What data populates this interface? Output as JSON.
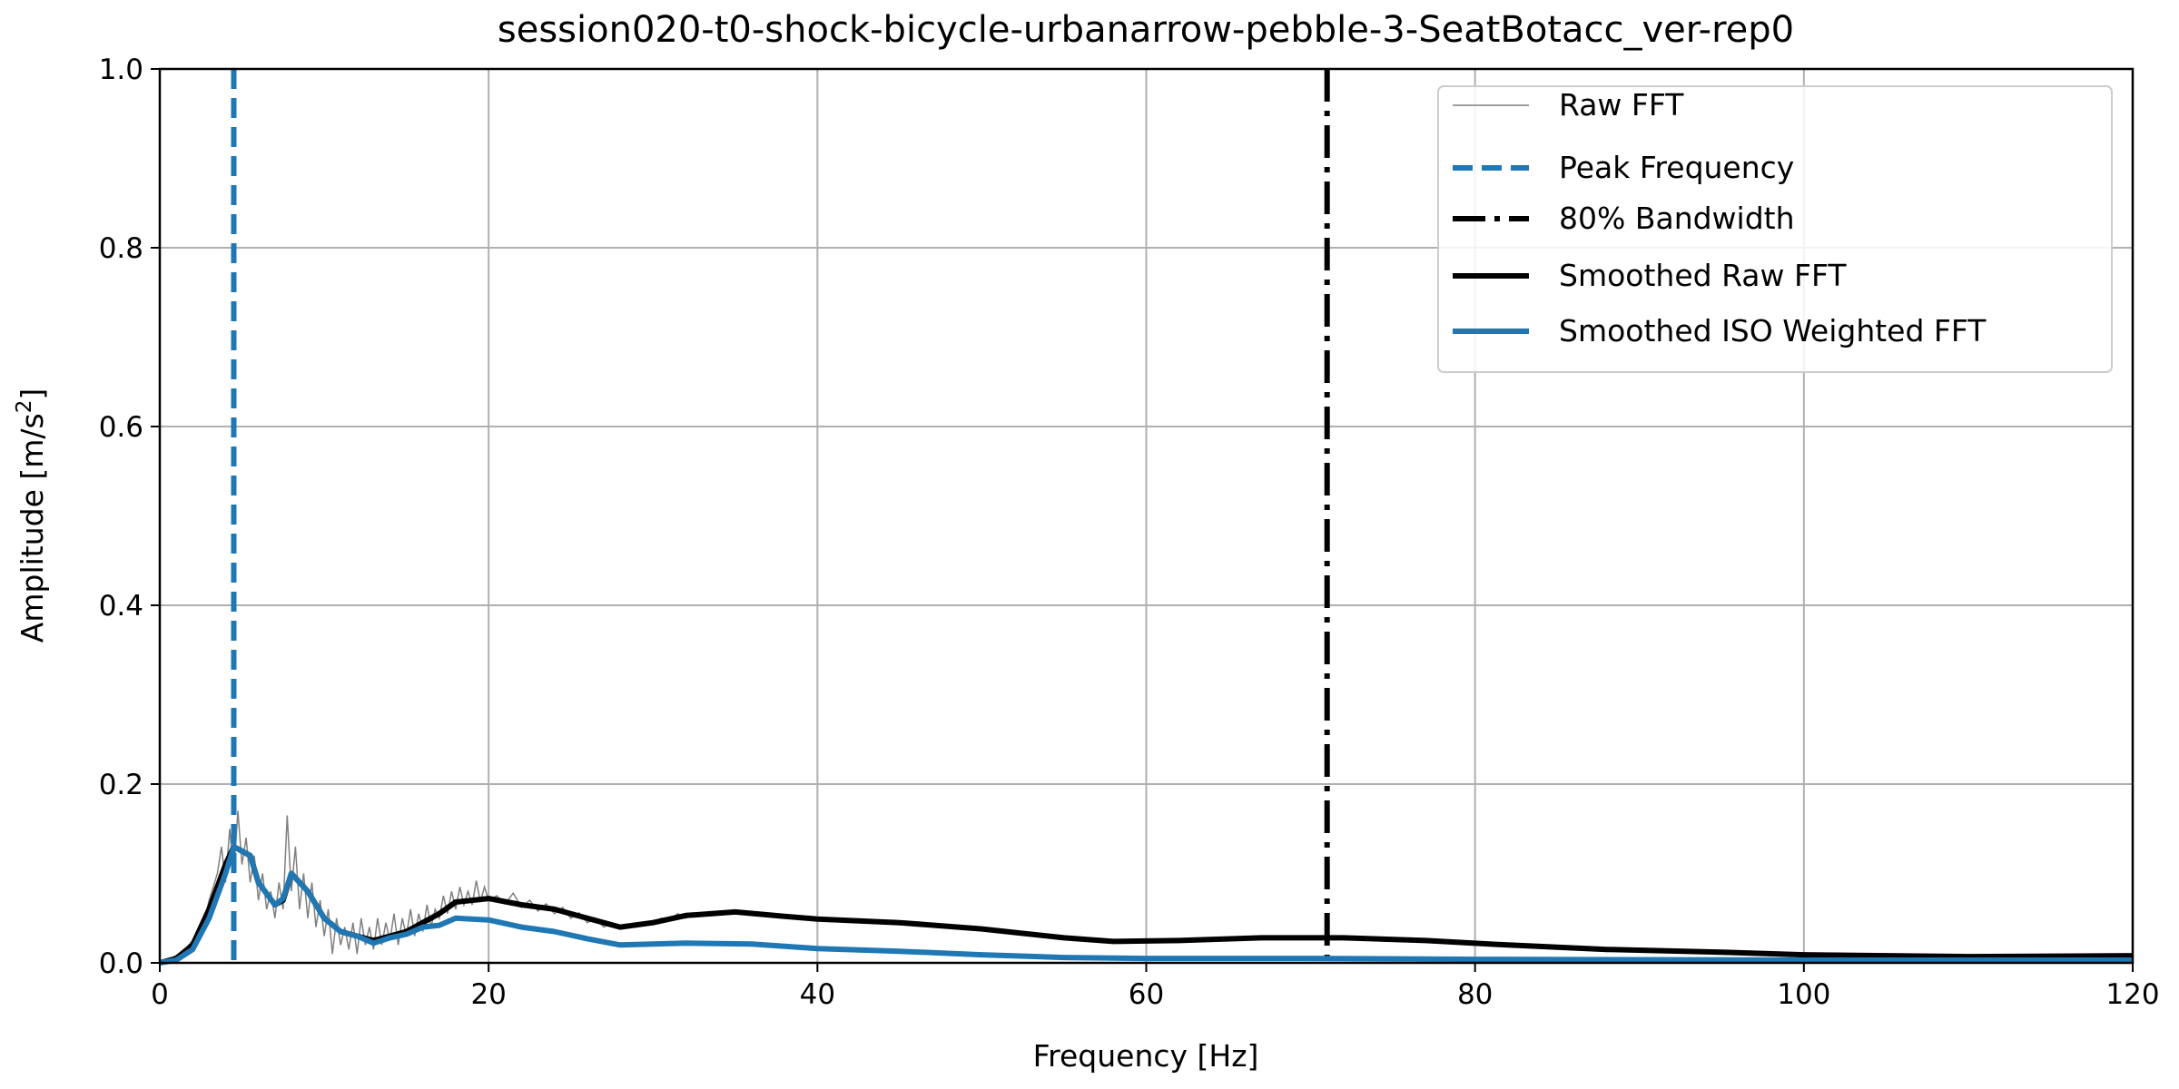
{
  "chart_data": {
    "type": "line",
    "title": "session020-t0-shock-bicycle-urbanarrow-pebble-3-SeatBotacc_ver-rep0",
    "xlabel": "Frequency [Hz]",
    "ylabel": "Amplitude [m/s",
    "ylabel_sup": "2",
    "ylabel_end": "]",
    "xlim": [
      0,
      120
    ],
    "ylim": [
      0,
      1.0
    ],
    "xticks": [
      0,
      20,
      40,
      60,
      80,
      100,
      120
    ],
    "xtick_labels": [
      "0",
      "20",
      "40",
      "60",
      "80",
      "100",
      "120"
    ],
    "yticks": [
      0,
      0.2,
      0.4,
      0.6,
      0.8,
      1.0
    ],
    "ytick_labels": [
      "0.0",
      "0.2",
      "0.4",
      "0.6",
      "0.8",
      "1.0"
    ],
    "grid": true,
    "legend_position": "top-right",
    "colors": {
      "raw": "#808080",
      "peak": "#1f77b4",
      "bandwidth": "#000000",
      "smoothed_raw": "#000000",
      "smoothed_iso": "#1f77b4",
      "grid": "#b0b0b0"
    },
    "peak_frequency": 4.5,
    "bandwidth_80": 71.0,
    "legend": [
      "Raw FFT",
      "Peak Frequency",
      "80% Bandwidth",
      "Smoothed Raw FFT",
      "Smoothed ISO Weighted FFT"
    ],
    "series": [
      {
        "name": "Raw FFT",
        "x": [
          0,
          0.25,
          0.5,
          0.75,
          1,
          1.25,
          1.5,
          1.75,
          2,
          2.25,
          2.5,
          2.75,
          3,
          3.25,
          3.5,
          3.75,
          4,
          4.25,
          4.5,
          4.75,
          5,
          5.25,
          5.5,
          5.75,
          6,
          6.25,
          6.5,
          6.75,
          7,
          7.25,
          7.5,
          7.75,
          8,
          8.25,
          8.5,
          8.75,
          9,
          9.25,
          9.5,
          9.75,
          10,
          10.25,
          10.5,
          10.75,
          11,
          11.25,
          11.5,
          11.75,
          12,
          12.25,
          12.5,
          12.75,
          13,
          13.25,
          13.5,
          13.75,
          14,
          14.25,
          14.5,
          14.75,
          15,
          15.25,
          15.5,
          15.75,
          16,
          16.25,
          16.5,
          16.75,
          17,
          17.25,
          17.5,
          17.75,
          18,
          18.25,
          18.5,
          18.75,
          19,
          19.25,
          19.5,
          19.75,
          20,
          20.5,
          21,
          21.5,
          22,
          22.5,
          23,
          23.5,
          24,
          24.5,
          25,
          25.5,
          26,
          26.5,
          27,
          27.5,
          28,
          28.5,
          29,
          29.5,
          30,
          30.5,
          31,
          31.5,
          32,
          32.5,
          33,
          34,
          35,
          38,
          40,
          45,
          50,
          55,
          58,
          62,
          67,
          72,
          77,
          82,
          88,
          95,
          100,
          110,
          120
        ],
        "y": [
          0,
          0.002,
          0.003,
          0.006,
          0.008,
          0.01,
          0.014,
          0.02,
          0.025,
          0.032,
          0.045,
          0.05,
          0.07,
          0.085,
          0.1,
          0.13,
          0.09,
          0.15,
          0.1,
          0.17,
          0.11,
          0.14,
          0.09,
          0.12,
          0.07,
          0.1,
          0.06,
          0.08,
          0.05,
          0.09,
          0.06,
          0.165,
          0.08,
          0.13,
          0.06,
          0.1,
          0.05,
          0.09,
          0.04,
          0.07,
          0.03,
          0.06,
          0.01,
          0.05,
          0.02,
          0.04,
          0.015,
          0.045,
          0.01,
          0.05,
          0.02,
          0.04,
          0.015,
          0.05,
          0.02,
          0.045,
          0.025,
          0.055,
          0.02,
          0.05,
          0.03,
          0.06,
          0.03,
          0.055,
          0.035,
          0.065,
          0.04,
          0.06,
          0.05,
          0.075,
          0.055,
          0.08,
          0.06,
          0.085,
          0.065,
          0.08,
          0.065,
          0.092,
          0.068,
          0.085,
          0.07,
          0.075,
          0.066,
          0.078,
          0.062,
          0.07,
          0.058,
          0.066,
          0.055,
          0.062,
          0.05,
          0.056,
          0.045,
          0.05,
          0.04,
          0.044,
          0.038,
          0.042,
          0.04,
          0.046,
          0.044,
          0.05,
          0.048,
          0.055,
          0.05,
          0.056,
          0.054,
          0.056,
          0.057,
          0.052,
          0.049,
          0.045,
          0.038,
          0.028,
          0.024,
          0.025,
          0.028,
          0.028,
          0.025,
          0.02,
          0.015,
          0.012,
          0.009,
          0.007,
          0.008
        ]
      },
      {
        "name": "Smoothed Raw FFT",
        "x": [
          0,
          1,
          2,
          3,
          4,
          4.5,
          5,
          5.5,
          6,
          7,
          7.5,
          8,
          9,
          10,
          11,
          12,
          13,
          14,
          15,
          16,
          17,
          18,
          20,
          22,
          24,
          26,
          28,
          30,
          32,
          35,
          38,
          40,
          45,
          50,
          55,
          58,
          62,
          67,
          72,
          77,
          82,
          88,
          95,
          100,
          110,
          120
        ],
        "y": [
          0,
          0.005,
          0.02,
          0.06,
          0.11,
          0.13,
          0.125,
          0.12,
          0.09,
          0.065,
          0.07,
          0.1,
          0.08,
          0.05,
          0.035,
          0.03,
          0.025,
          0.03,
          0.035,
          0.045,
          0.055,
          0.068,
          0.072,
          0.065,
          0.06,
          0.05,
          0.04,
          0.045,
          0.053,
          0.057,
          0.052,
          0.049,
          0.045,
          0.038,
          0.028,
          0.024,
          0.025,
          0.028,
          0.028,
          0.025,
          0.02,
          0.015,
          0.012,
          0.009,
          0.007,
          0.008
        ]
      },
      {
        "name": "Smoothed ISO Weighted FFT",
        "x": [
          0,
          1,
          2,
          3,
          4,
          4.5,
          5,
          5.5,
          6,
          7,
          7.5,
          8,
          9,
          10,
          11,
          12,
          13,
          14,
          15,
          16,
          17,
          18,
          20,
          22,
          24,
          26,
          28,
          32,
          36,
          40,
          45,
          50,
          55,
          60,
          70,
          80,
          100,
          120
        ],
        "y": [
          0,
          0.003,
          0.015,
          0.05,
          0.1,
          0.13,
          0.125,
          0.12,
          0.09,
          0.065,
          0.072,
          0.1,
          0.08,
          0.05,
          0.035,
          0.03,
          0.022,
          0.028,
          0.032,
          0.04,
          0.042,
          0.05,
          0.048,
          0.04,
          0.035,
          0.027,
          0.02,
          0.022,
          0.021,
          0.016,
          0.013,
          0.009,
          0.006,
          0.005,
          0.005,
          0.004,
          0.003,
          0.003
        ]
      }
    ]
  }
}
